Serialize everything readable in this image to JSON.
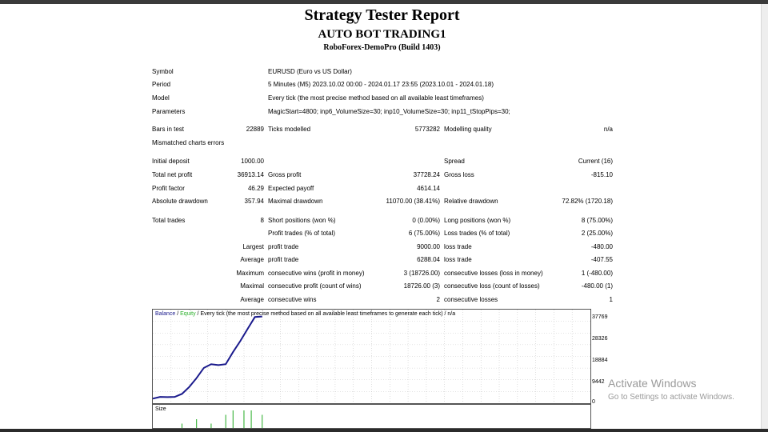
{
  "report": {
    "title": "Strategy Tester Report",
    "expert": "AUTO BOT TRADING1",
    "server": "RoboForex-DemoPro (Build 1403)"
  },
  "info": {
    "symbol_label": "Symbol",
    "symbol_value": "EURUSD (Euro vs US Dollar)",
    "period_label": "Period",
    "period_value": "5 Minutes (M5) 2023.10.02 00:00 - 2024.01.17 23:55 (2023.10.01 - 2024.01.18)",
    "model_label": "Model",
    "model_value": "Every tick (the most precise method based on all available least timeframes)",
    "parameters_label": "Parameters",
    "parameters_value": "MagicStart=4800; inp6_VolumeSize=30; inp10_VolumeSize=30; inp11_tStopPips=30;"
  },
  "bars": {
    "bars_label": "Bars in test",
    "bars_value": "22889",
    "ticks_label": "Ticks modelled",
    "ticks_value": "5773282",
    "quality_label": "Modelling quality",
    "quality_value": "n/a",
    "mismatch_label": "Mismatched charts errors"
  },
  "results": {
    "initial_deposit_label": "Initial deposit",
    "initial_deposit": "1000.00",
    "spread_label": "Spread",
    "spread": "Current (16)",
    "net_profit_label": "Total net profit",
    "net_profit": "36913.14",
    "gross_profit_label": "Gross profit",
    "gross_profit": "37728.24",
    "gross_loss_label": "Gross loss",
    "gross_loss": "-815.10",
    "profit_factor_label": "Profit factor",
    "profit_factor": "46.29",
    "expected_payoff_label": "Expected payoff",
    "expected_payoff": "4614.14",
    "abs_dd_label": "Absolute drawdown",
    "abs_dd": "357.94",
    "max_dd_label": "Maximal drawdown",
    "max_dd": "11070.00 (38.41%)",
    "rel_dd_label": "Relative drawdown",
    "rel_dd": "72.82% (1720.18)"
  },
  "trades": {
    "total_label": "Total trades",
    "total": "8",
    "short_label": "Short positions (won %)",
    "short": "0 (0.00%)",
    "long_label": "Long positions (won %)",
    "long": "8 (75.00%)",
    "profit_trades_label": "Profit trades (% of total)",
    "profit_trades": "6 (75.00%)",
    "loss_trades_label": "Loss trades (% of total)",
    "loss_trades": "2 (25.00%)",
    "largest": "Largest",
    "largest_profit_label": "profit trade",
    "largest_profit": "9000.00",
    "largest_loss_label": "loss trade",
    "largest_loss": "-480.00",
    "average": "Average",
    "average_profit_label": "profit trade",
    "average_profit": "6288.04",
    "average_loss_label": "loss trade",
    "average_loss": "-407.55",
    "maximum": "Maximum",
    "max_cons_wins_label": "consecutive wins (profit in money)",
    "max_cons_wins": "3 (18726.00)",
    "max_cons_losses_label": "consecutive losses (loss in money)",
    "max_cons_losses": "1 (-480.00)",
    "maximal": "Maximal",
    "maximal_cons_profit_label": "consecutive profit (count of wins)",
    "maximal_cons_profit": "18726.00 (3)",
    "maximal_cons_loss_label": "consecutive loss (count of losses)",
    "maximal_cons_loss": "-480.00 (1)",
    "average2": "Average",
    "avg_cons_wins_label": "consecutive wins",
    "avg_cons_wins": "2",
    "avg_cons_losses_label": "consecutive losses",
    "avg_cons_losses": "1"
  },
  "chart_legend": {
    "balance": "Balance",
    "sep1": " / ",
    "equity": "Equity",
    "rest": " / Every tick (the most precise method based on all available least timeframes to generate each tick) / n/a"
  },
  "size_label": "Size",
  "watermark": {
    "line1": "Activate Windows",
    "line2": "Go to Settings to activate Windows."
  },
  "colors": {
    "balance": "#1a1a8c",
    "equity": "#2bb02b",
    "grid": "#c8c8c8",
    "volume": "#22aa22"
  },
  "chart_data": {
    "type": "line",
    "ytick_labels": [
      "37769",
      "28326",
      "18884",
      "9442",
      "0"
    ],
    "ylim": [
      0,
      41000
    ],
    "series": [
      {
        "name": "Balance",
        "x": [
          0,
          1,
          2,
          3,
          4,
          5,
          6,
          7,
          8,
          9,
          10,
          11,
          12,
          13,
          14,
          15
        ],
        "values": [
          1000,
          1800,
          1700,
          1800,
          3200,
          6400,
          10500,
          15200,
          16900,
          16500,
          16900,
          22500,
          27600,
          33200,
          38700,
          38900
        ]
      }
    ],
    "xlim": [
      0,
      60
    ],
    "volume": {
      "x": [
        4,
        6,
        8,
        10,
        11,
        12.5,
        13.5,
        15
      ],
      "values": [
        1,
        2,
        1,
        3,
        4,
        4,
        4,
        3
      ]
    }
  }
}
